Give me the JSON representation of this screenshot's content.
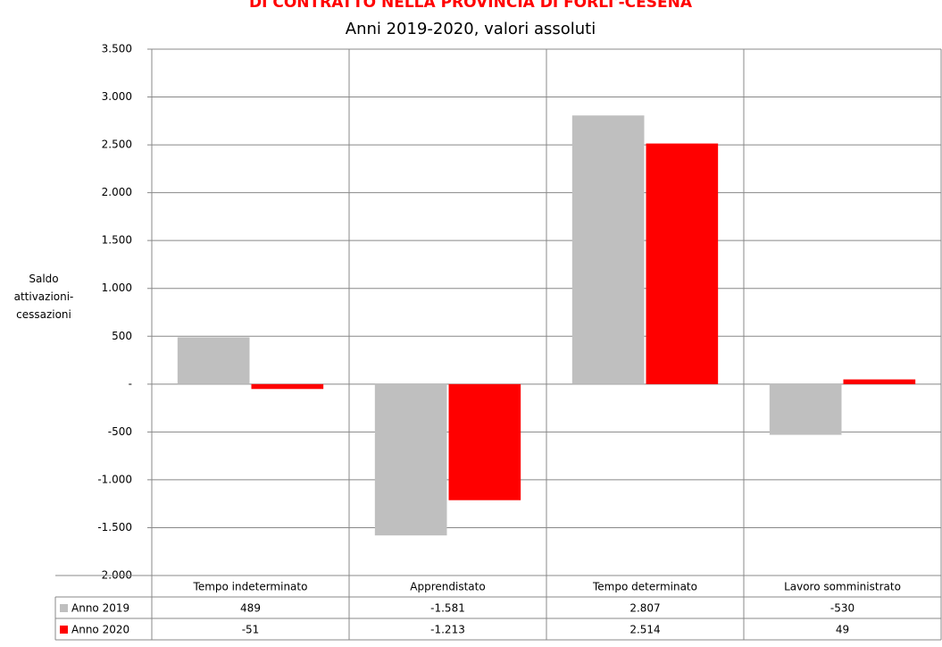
{
  "chart_data": {
    "type": "bar",
    "title": "DI CONTRATTO NELLA PROVINCIA DI FORLI'-CESENA",
    "subtitle": "Anni 2019-2020, valori assoluti",
    "y_label": "Saldo attivazioni-cessazioni",
    "categories": [
      "Tempo indeterminato",
      "Apprendistato",
      "Tempo determinato",
      "Lavoro somministrato"
    ],
    "series": [
      {
        "name": "Anno 2019",
        "color": "#bfbfbf",
        "values": [
          489,
          -1581,
          2807,
          -530
        ],
        "value_labels": [
          "489",
          "-1.581",
          "2.807",
          "-530"
        ]
      },
      {
        "name": "Anno 2020",
        "color": "#ff0000",
        "values": [
          -51,
          -1213,
          2514,
          49
        ],
        "value_labels": [
          "-51",
          "-1.213",
          "2.514",
          "49"
        ]
      }
    ],
    "ylim": [
      -2000,
      3500
    ],
    "yticks": [
      {
        "value": -2000,
        "label": "-2.000"
      },
      {
        "value": -1500,
        "label": "-1.500"
      },
      {
        "value": -1000,
        "label": "-1.000"
      },
      -500,
      {
        "value": 0,
        "label": "-"
      },
      500,
      {
        "value": 1000,
        "label": "1.000"
      },
      {
        "value": 1500,
        "label": "1.500"
      },
      {
        "value": 2000,
        "label": "2.000"
      },
      {
        "value": 2500,
        "label": "2.500"
      },
      {
        "value": 3000,
        "label": "3.000"
      },
      {
        "value": 3500,
        "label": "3.500"
      }
    ],
    "grid": true
  }
}
